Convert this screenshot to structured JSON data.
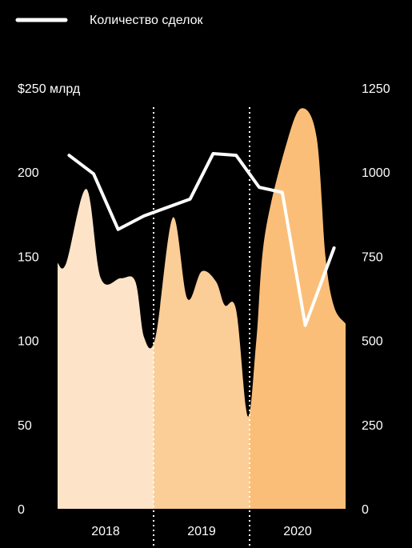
{
  "chart_data": {
    "type": "area",
    "legend": {
      "label": "Количество сделок",
      "position": "top-left"
    },
    "years": [
      "2018",
      "2019",
      "2020"
    ],
    "year_colors": [
      "#FDE4C8",
      "#FBCD97",
      "#FBBE78"
    ],
    "line_color": "#FFFFFF",
    "left_axis": {
      "title": "$250 млрд",
      "ticks": [
        "200",
        "150",
        "100",
        "50",
        "0"
      ],
      "range": [
        0,
        250
      ]
    },
    "right_axis": {
      "ticks": [
        "1250",
        "1000",
        "750",
        "500",
        "250",
        "0"
      ],
      "range": [
        0,
        1250
      ]
    },
    "series": [
      {
        "kind": "area",
        "axis": "left",
        "x": [
          0.0,
          0.03,
          0.1,
          0.15,
          0.22,
          0.27,
          0.3,
          0.34,
          0.4,
          0.45,
          0.5,
          0.55,
          0.58,
          0.62,
          0.66,
          0.69,
          0.72,
          0.8,
          0.85,
          0.9,
          0.93,
          0.96,
          1.0
        ],
        "values": [
          146,
          146,
          190,
          137,
          137,
          135,
          102,
          102,
          173,
          125,
          141,
          135,
          121,
          118,
          55,
          100,
          163,
          220,
          238,
          220,
          150,
          120,
          110
        ]
      },
      {
        "kind": "line",
        "axis": "right",
        "x": [
          0.04,
          0.125,
          0.21,
          0.3,
          0.46,
          0.54,
          0.62,
          0.7,
          0.78,
          0.86,
          0.96
        ],
        "values": [
          1050,
          995,
          830,
          870,
          920,
          1055,
          1050,
          955,
          940,
          545,
          775
        ]
      }
    ]
  }
}
